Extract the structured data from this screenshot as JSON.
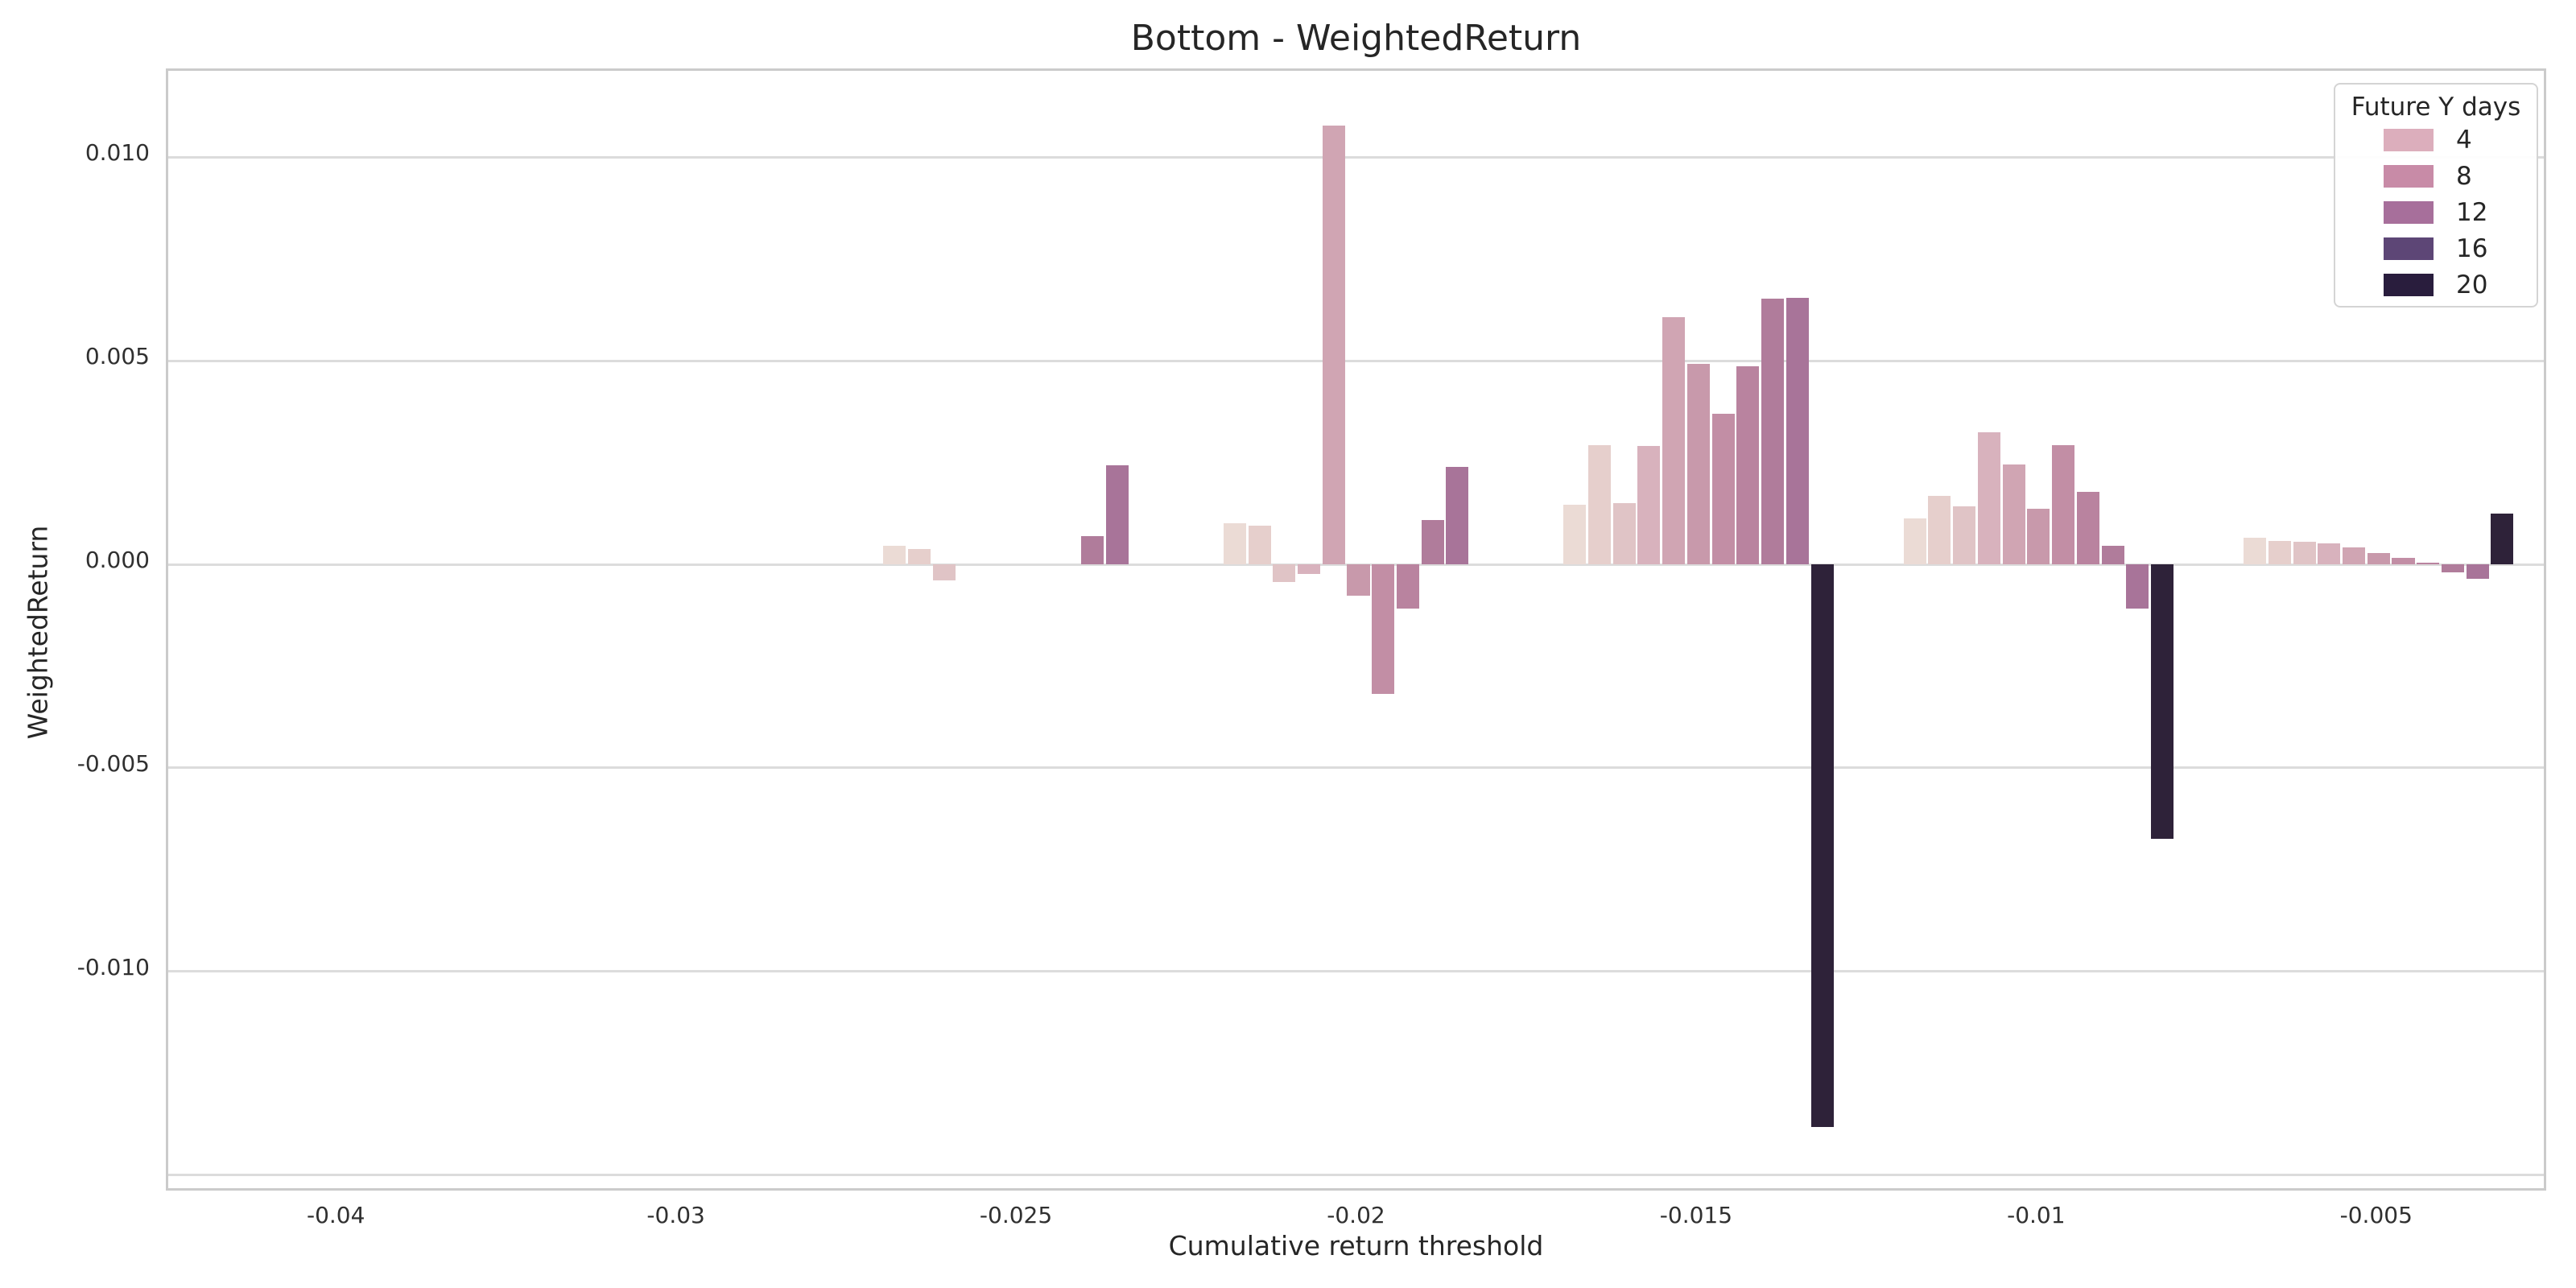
{
  "chart_data": {
    "type": "bar",
    "title": "Bottom - WeightedReturn",
    "xlabel": "Cumulative return threshold",
    "ylabel": "WeightedReturn",
    "legend_title": "Future Y days",
    "legend_position": "upper right",
    "legend_entries": [
      {
        "label": "4",
        "color": "#dcaebc"
      },
      {
        "label": "8",
        "color": "#c88ba7"
      },
      {
        "label": "12",
        "color": "#a76f9b"
      },
      {
        "label": "16",
        "color": "#5d4676"
      },
      {
        "label": "20",
        "color": "#291d3d"
      }
    ],
    "grid": true,
    "background": "#ffffff",
    "grid_color": "#dcdcdc",
    "spine_color": "#cbcbcb",
    "text_color": "#262626",
    "ylim": [
      -0.01544,
      0.01212
    ],
    "yticks": [
      {
        "label": "0.010",
        "value": 0.01
      },
      {
        "label": "0.005",
        "value": 0.005
      },
      {
        "label": "0.000",
        "value": 0.0
      },
      {
        "label": "-0.005",
        "value": -0.005
      },
      {
        "label": "-0.010",
        "value": -0.01
      }
    ],
    "gridline_values": [
      0.01,
      0.005,
      0.0,
      -0.005,
      -0.01,
      -0.015
    ],
    "categories": [
      "-0.04",
      "-0.03",
      "-0.025",
      "-0.02",
      "-0.015",
      "-0.01",
      "-0.005"
    ],
    "hue_slot_count": 11,
    "hue_palette": [
      "#ebdbd5",
      "#e6cfcc",
      "#e0c4c6",
      "#d8b2bd",
      "#d0a5b3",
      "#c899ab",
      "#c28ea5",
      "#b9839f",
      "#b07c9b",
      "#a87499",
      "#2e2239"
    ],
    "group_width_fraction": 0.8,
    "groups": [
      {
        "category": "-0.04",
        "bars": []
      },
      {
        "category": "-0.03",
        "bars": []
      },
      {
        "category": "-0.025",
        "bars": [
          {
            "slot": 0,
            "value": 0.00045
          },
          {
            "slot": 1,
            "value": 0.00038
          },
          {
            "slot": 2,
            "value": -0.0004
          },
          {
            "slot": 8,
            "value": 0.0007
          },
          {
            "slot": 9,
            "value": 0.00243
          }
        ]
      },
      {
        "category": "-0.02",
        "bars": [
          {
            "slot": 0,
            "value": 0.00101
          },
          {
            "slot": 1,
            "value": 0.00095
          },
          {
            "slot": 2,
            "value": -0.00043
          },
          {
            "slot": 3,
            "value": -0.00024
          },
          {
            "slot": 4,
            "value": 0.01078
          },
          {
            "slot": 5,
            "value": -0.00077
          },
          {
            "slot": 6,
            "value": -0.00318
          },
          {
            "slot": 7,
            "value": -0.00108
          },
          {
            "slot": 8,
            "value": 0.00108
          },
          {
            "slot": 9,
            "value": 0.0024
          }
        ]
      },
      {
        "category": "-0.015",
        "bars": [
          {
            "slot": 0,
            "value": 0.00146
          },
          {
            "slot": 1,
            "value": 0.00292
          },
          {
            "slot": 2,
            "value": 0.00151
          },
          {
            "slot": 3,
            "value": 0.00291
          },
          {
            "slot": 4,
            "value": 0.00608
          },
          {
            "slot": 5,
            "value": 0.00493
          },
          {
            "slot": 6,
            "value": 0.0037
          },
          {
            "slot": 7,
            "value": 0.00486
          },
          {
            "slot": 8,
            "value": 0.00653
          },
          {
            "slot": 9,
            "value": 0.00655
          },
          {
            "slot": 10,
            "value": -0.01381
          }
        ]
      },
      {
        "category": "-0.01",
        "bars": [
          {
            "slot": 0,
            "value": 0.00112
          },
          {
            "slot": 1,
            "value": 0.00168
          },
          {
            "slot": 2,
            "value": 0.00142
          },
          {
            "slot": 3,
            "value": 0.00325
          },
          {
            "slot": 4,
            "value": 0.00245
          },
          {
            "slot": 5,
            "value": 0.00137
          },
          {
            "slot": 6,
            "value": 0.00293
          },
          {
            "slot": 7,
            "value": 0.00178
          },
          {
            "slot": 8,
            "value": 0.00046
          },
          {
            "slot": 9,
            "value": -0.00109
          },
          {
            "slot": 10,
            "value": -0.00675
          }
        ]
      },
      {
        "category": "-0.005",
        "bars": [
          {
            "slot": 0,
            "value": 0.00066
          },
          {
            "slot": 1,
            "value": 0.00057
          },
          {
            "slot": 2,
            "value": 0.00055
          },
          {
            "slot": 3,
            "value": 0.00052
          },
          {
            "slot": 4,
            "value": 0.00041
          },
          {
            "slot": 5,
            "value": 0.00027
          },
          {
            "slot": 6,
            "value": 0.00015
          },
          {
            "slot": 7,
            "value": 5e-05
          },
          {
            "slot": 8,
            "value": -0.00019
          },
          {
            "slot": 9,
            "value": -0.00035
          },
          {
            "slot": 10,
            "value": 0.00125
          }
        ]
      }
    ]
  }
}
